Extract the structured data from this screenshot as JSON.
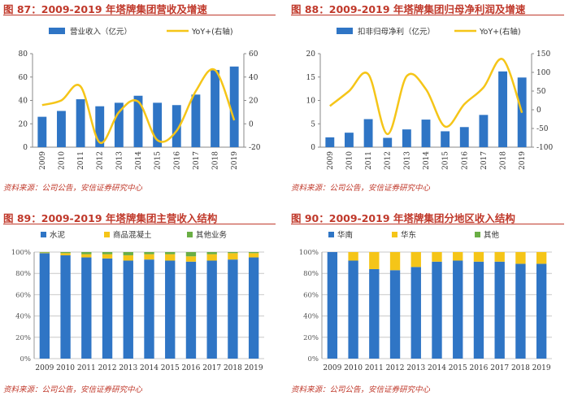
{
  "colors": {
    "blue": "#2F75C5",
    "yellow": "#F5C518",
    "green": "#6AAE45",
    "gray": "#C9C9C9",
    "red": "#c0392b"
  },
  "panels": [
    {
      "title": "图 87：2009-2019 年塔牌集团营收及增速",
      "source": "资料来源：公司公告，安信证券研究中心",
      "chart_data": {
        "type": "bar+line",
        "categories": [
          "2009",
          "2010",
          "2011",
          "2012",
          "2013",
          "2014",
          "2015",
          "2016",
          "2017",
          "2018",
          "2019"
        ],
        "series": [
          {
            "name": "营业收入（亿元）",
            "type": "bar",
            "axis": "left",
            "values": [
              26,
              31,
              41,
              35,
              38,
              44,
              38,
              36,
              45,
              66,
              69
            ]
          },
          {
            "name": "YoY+(右轴)",
            "type": "line",
            "axis": "right",
            "values": [
              16,
              20,
              32,
              -16,
              10,
              19,
              -14,
              -6,
              28,
              46,
              3
            ]
          }
        ],
        "ylim": [
          0,
          80
        ],
        "yticks": [
          0,
          20,
          40,
          60,
          80
        ],
        "y2lim": [
          -20,
          60
        ],
        "y2ticks": [
          -20,
          0,
          20,
          40,
          60
        ],
        "legend": "top"
      }
    },
    {
      "title": "图 88：2009-2019 年塔牌集团归母净利润及增速",
      "source": "资料来源：公司公告，安信证券研究中心",
      "chart_data": {
        "type": "bar+line",
        "categories": [
          "2009",
          "2010",
          "2011",
          "2012",
          "2013",
          "2014",
          "2015",
          "2016",
          "2017",
          "2018",
          "2019"
        ],
        "series": [
          {
            "name": "扣非归母净利（亿元）",
            "type": "bar",
            "axis": "left",
            "values": [
              2.1,
              3.1,
              6.0,
              2.0,
              3.8,
              5.9,
              3.4,
              4.3,
              6.9,
              16.2,
              14.9
            ]
          },
          {
            "name": "YoY+(右轴)",
            "type": "line",
            "axis": "right",
            "values": [
              10,
              50,
              95,
              -65,
              90,
              55,
              -45,
              15,
              60,
              135,
              -8
            ]
          }
        ],
        "ylim": [
          0,
          20
        ],
        "yticks": [
          0,
          5,
          10,
          15,
          20
        ],
        "y2lim": [
          -100,
          150
        ],
        "y2ticks": [
          -100,
          -50,
          0,
          50,
          100,
          150
        ],
        "legend": "top"
      }
    },
    {
      "title": "图 89：2009-2019 年塔牌集团主营收入结构",
      "source": "资料来源：公司公告，安信证券研究中心",
      "chart_data": {
        "type": "bar",
        "stacked": true,
        "categories": [
          "2009",
          "2010",
          "2011",
          "2012",
          "2013",
          "2014",
          "2015",
          "2016",
          "2017",
          "2018",
          "2019"
        ],
        "series": [
          {
            "name": "水泥",
            "values": [
              99,
              97,
              95,
              94,
              92,
              93,
              92,
              91,
              92,
              93,
              95
            ]
          },
          {
            "name": "商品混凝土",
            "values": [
              0.5,
              2,
              3,
              4,
              5,
              5,
              6,
              5,
              6,
              6,
              4
            ]
          },
          {
            "name": "其他业务",
            "values": [
              0.5,
              1,
              2,
              2,
              3,
              2,
              2,
              4,
              2,
              1,
              1
            ]
          }
        ],
        "ylim": [
          0,
          100
        ],
        "yticks": [
          "0%",
          "20%",
          "40%",
          "60%",
          "80%",
          "100%"
        ],
        "legend": "top"
      }
    },
    {
      "title": "图 90：2009-2019 年塔牌集团分地区收入结构",
      "source": "资料来源：公司公告，安信证券研究中心",
      "chart_data": {
        "type": "bar",
        "stacked": true,
        "categories": [
          "2009",
          "2010",
          "2011",
          "2012",
          "2013",
          "2014",
          "2015",
          "2016",
          "2017",
          "2018",
          "2019"
        ],
        "series": [
          {
            "name": "华南",
            "values": [
              100,
              92,
              84,
              83,
              86,
              91,
              92,
              91,
              91,
              89,
              89
            ]
          },
          {
            "name": "华东",
            "values": [
              0,
              8,
              16,
              17,
              14,
              9,
              8,
              9,
              9,
              11,
              11
            ]
          },
          {
            "name": "其他",
            "values": [
              0,
              0,
              0,
              0,
              0,
              0,
              0,
              0,
              0,
              0,
              0
            ]
          }
        ],
        "ylim": [
          0,
          100
        ],
        "yticks": [
          "0%",
          "20%",
          "40%",
          "60%",
          "80%",
          "100%"
        ],
        "legend": "top"
      }
    }
  ]
}
